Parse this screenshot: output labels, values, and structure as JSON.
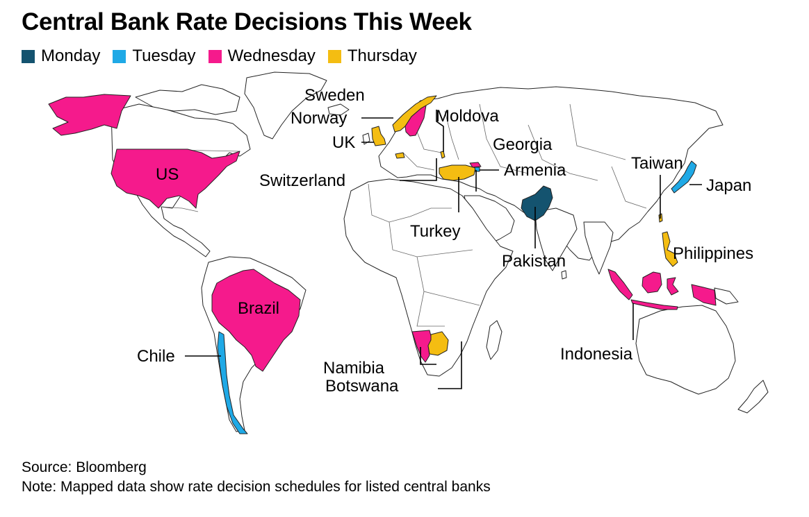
{
  "title": "Central Bank Rate Decisions This Week",
  "legend": [
    {
      "label": "Monday",
      "color": "#14536f"
    },
    {
      "label": "Tuesday",
      "color": "#1fa9e6"
    },
    {
      "label": "Wednesday",
      "color": "#f51a8c"
    },
    {
      "label": "Thursday",
      "color": "#f4bd12"
    }
  ],
  "labels": {
    "sweden": "Sweden",
    "norway": "Norway",
    "moldova": "Moldova",
    "uk": "UK",
    "georgia": "Georgia",
    "armenia": "Armenia",
    "switzerland": "Switzerland",
    "us": "US",
    "taiwan": "Taiwan",
    "japan": "Japan",
    "turkey": "Turkey",
    "pakistan": "Pakistan",
    "philippines": "Philippines",
    "brazil": "Brazil",
    "chile": "Chile",
    "indonesia": "Indonesia",
    "namibia": "Namibia",
    "botswana": "Botswana"
  },
  "footer": {
    "source": "Source: Bloomberg",
    "note": "Note: Mapped data show rate decision schedules for listed central banks"
  }
}
